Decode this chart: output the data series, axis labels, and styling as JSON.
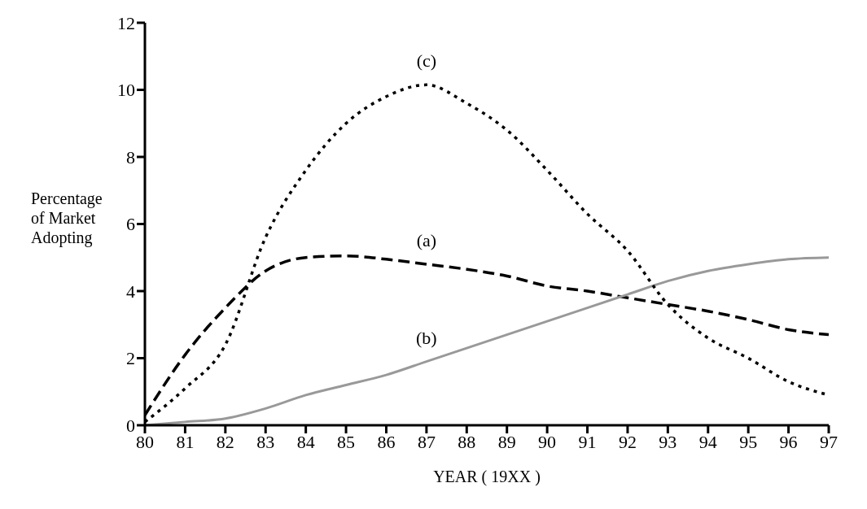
{
  "chart_data": {
    "type": "line",
    "xlabel": "YEAR ( 19XX )",
    "ylabel": "Percentage of Market Adopting",
    "x": [
      80,
      81,
      82,
      83,
      84,
      85,
      86,
      87,
      88,
      89,
      90,
      91,
      92,
      93,
      94,
      95,
      96,
      97
    ],
    "series": [
      {
        "name": "(a)",
        "color": "#000000",
        "line_style": "dashed",
        "values": [
          0.3,
          2.1,
          3.5,
          4.6,
          5.0,
          5.05,
          4.95,
          4.8,
          4.65,
          4.45,
          4.15,
          4.0,
          3.8,
          3.6,
          3.4,
          3.15,
          2.85,
          2.7
        ]
      },
      {
        "name": "(b)",
        "color": "#999999",
        "line_style": "solid",
        "values": [
          0,
          0.1,
          0.2,
          0.5,
          0.9,
          1.2,
          1.5,
          1.9,
          2.3,
          2.7,
          3.1,
          3.5,
          3.9,
          4.3,
          4.6,
          4.8,
          4.95,
          5.0
        ]
      },
      {
        "name": "(c)",
        "color": "#000000",
        "line_style": "dotted",
        "values": [
          0.1,
          1.1,
          2.4,
          5.6,
          7.6,
          9.0,
          9.8,
          10.15,
          9.6,
          8.8,
          7.6,
          6.3,
          5.2,
          3.6,
          2.6,
          2.0,
          1.3,
          0.9
        ]
      }
    ],
    "xlim": [
      80,
      97
    ],
    "xticks": [
      80,
      81,
      82,
      83,
      84,
      85,
      86,
      87,
      88,
      89,
      90,
      91,
      92,
      93,
      94,
      95,
      96,
      97
    ],
    "ylim": [
      0,
      12
    ],
    "yticks": [
      0,
      2,
      4,
      6,
      8,
      10,
      12
    ],
    "grid": false,
    "legend": false,
    "marker": "none"
  }
}
